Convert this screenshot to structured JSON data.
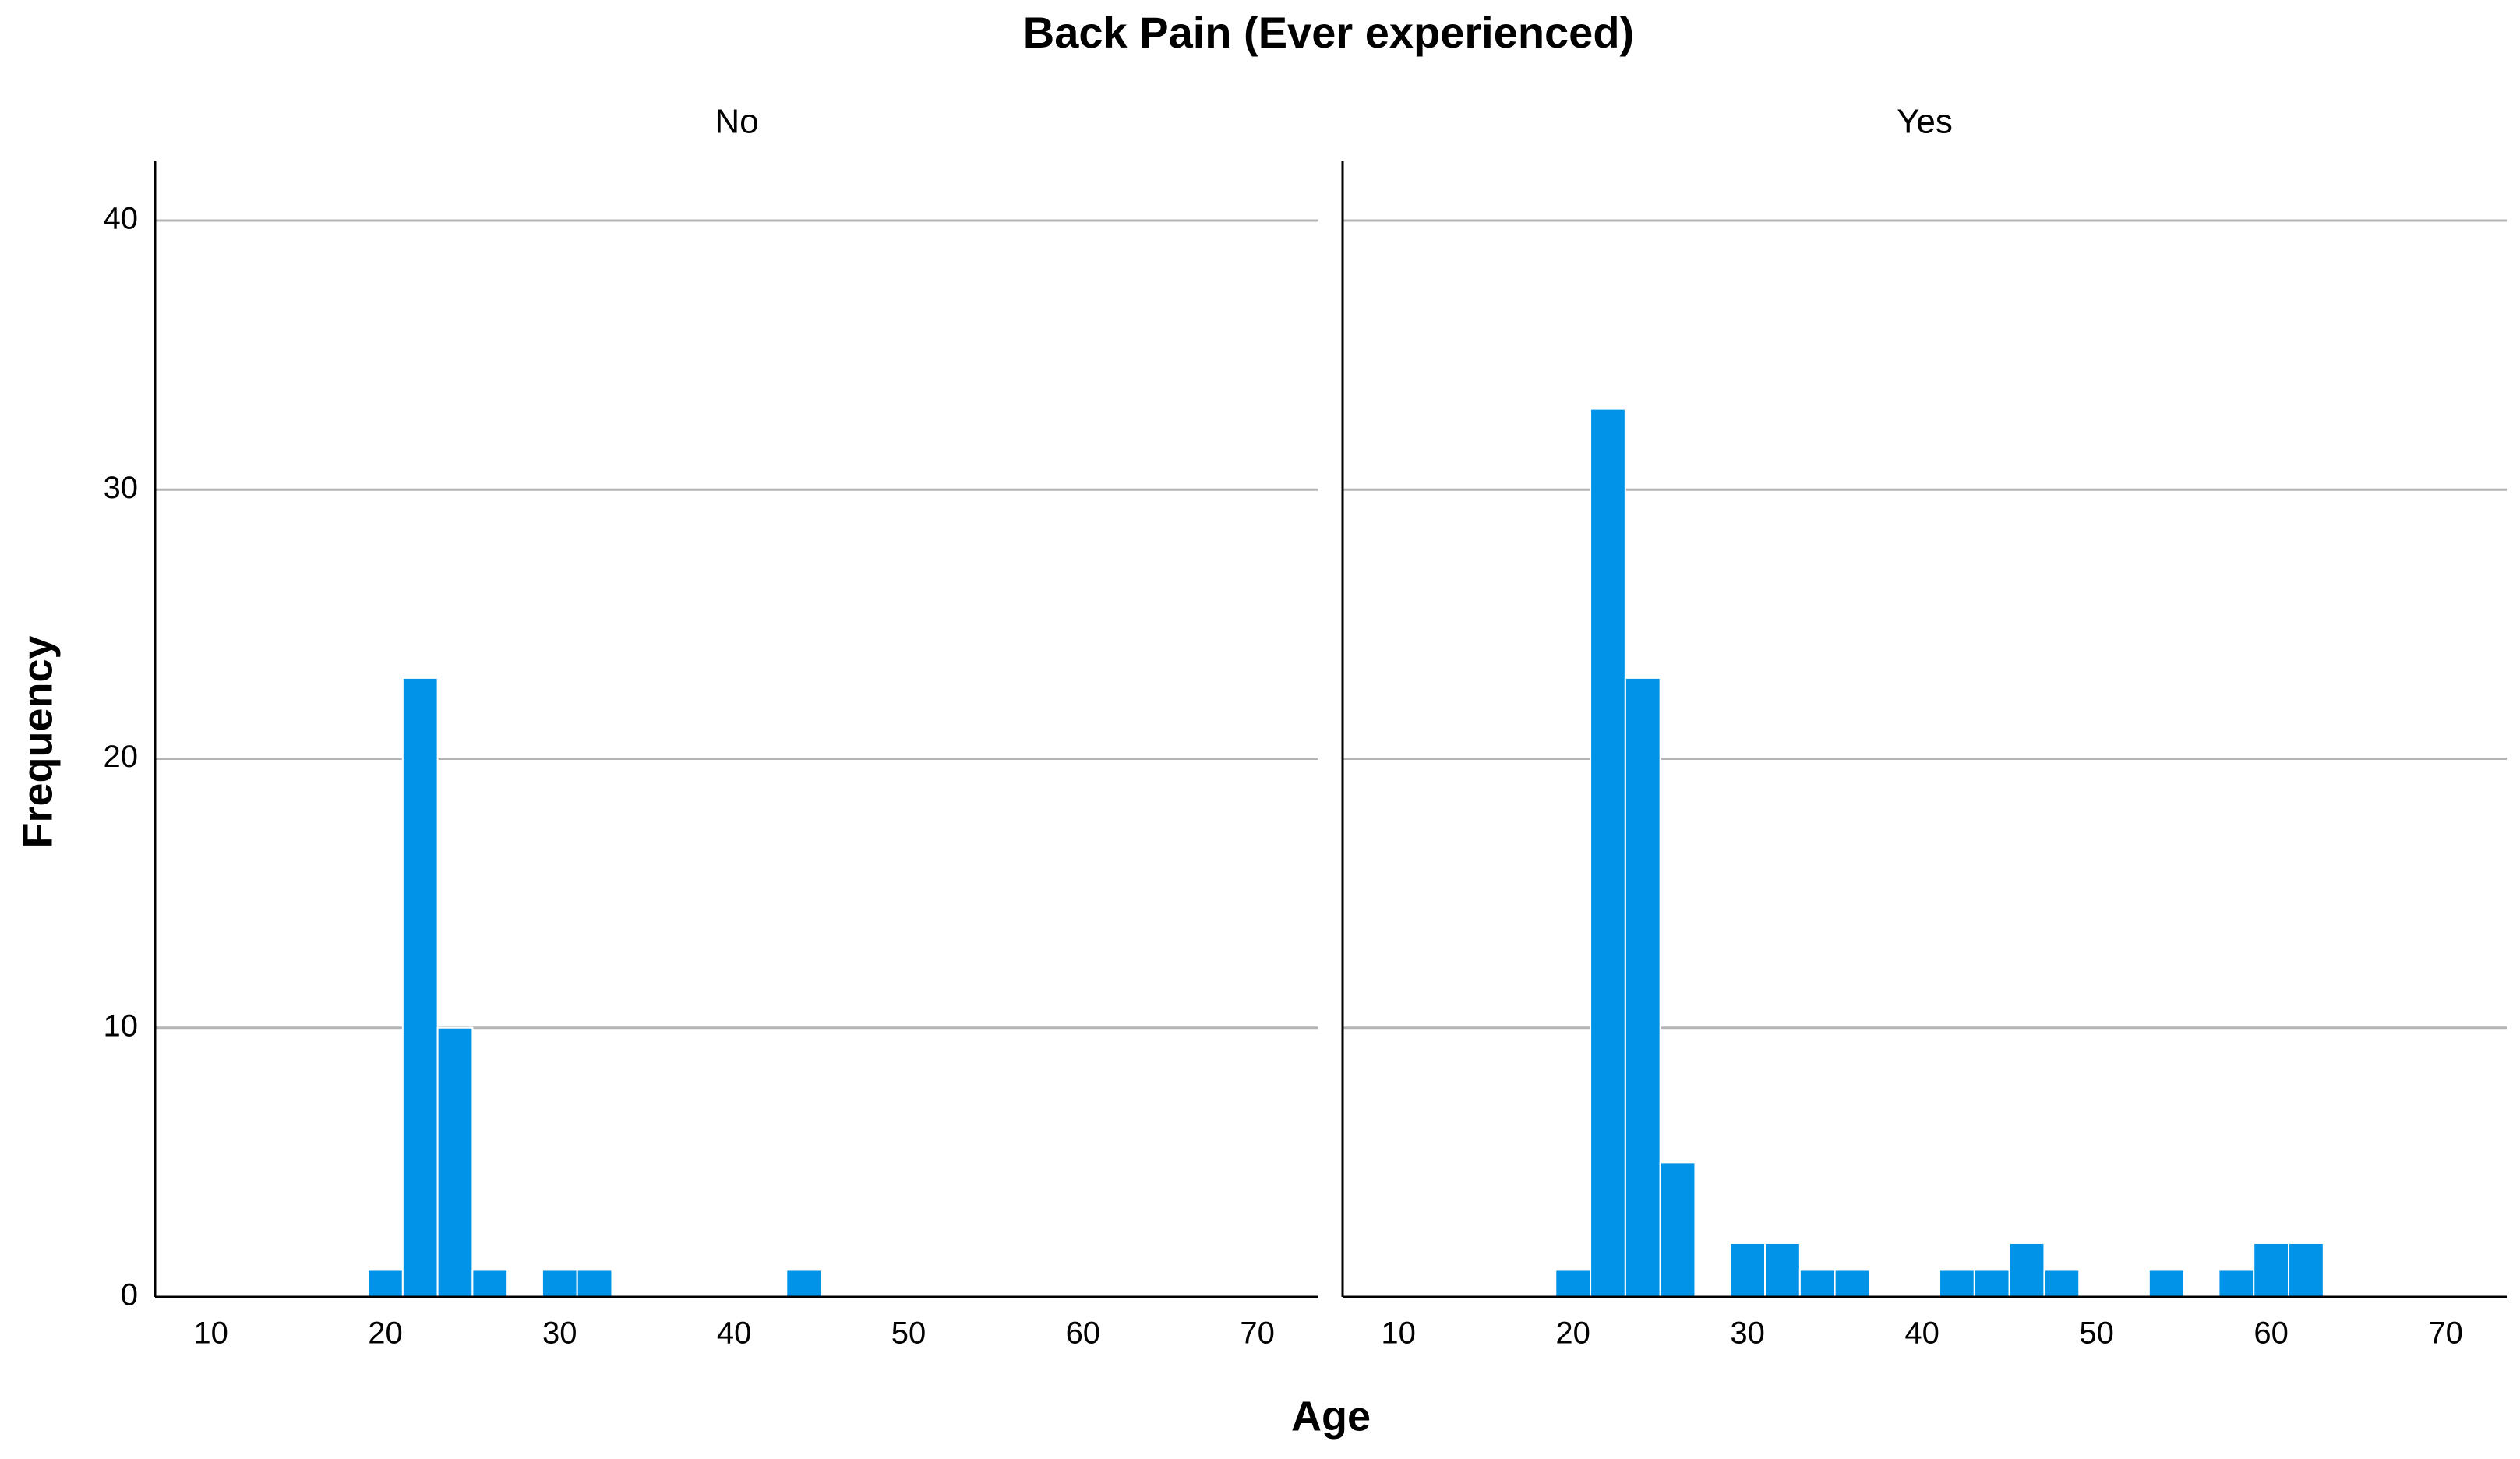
{
  "figure": {
    "title": "Back Pain (Ever experienced)",
    "x_label": "Age",
    "y_label": "Frequency"
  },
  "chart_data": [
    {
      "type": "histogram",
      "title": "No",
      "color": "#0093e8",
      "bins": [
        19,
        21,
        23,
        25,
        27,
        29,
        31,
        33,
        35,
        37,
        39,
        41,
        43,
        45,
        47,
        49,
        51,
        53,
        55,
        57,
        59,
        61,
        63
      ],
      "values": [
        1,
        23,
        10,
        1,
        0,
        1,
        1,
        0,
        0,
        0,
        0,
        0,
        1,
        0,
        0,
        0,
        0,
        0,
        0,
        0,
        0,
        0
      ],
      "xlim": [
        6.8,
        73.5
      ],
      "xticks": [
        10,
        20,
        30,
        40,
        50,
        60,
        70
      ],
      "ylim": [
        0,
        42.2
      ],
      "yticks": [
        0,
        10,
        20,
        30,
        40
      ],
      "grid": true
    },
    {
      "type": "histogram",
      "title": "Yes",
      "color": "#0093e8",
      "bins": [
        19,
        21,
        23,
        25,
        27,
        29,
        31,
        33,
        35,
        37,
        39,
        41,
        43,
        45,
        47,
        49,
        51,
        53,
        55,
        57,
        59,
        61,
        63
      ],
      "values": [
        1,
        33,
        23,
        5,
        0,
        2,
        2,
        1,
        1,
        0,
        0,
        1,
        1,
        2,
        1,
        0,
        0,
        1,
        0,
        1,
        2,
        2
      ],
      "xlim": [
        6.8,
        73.5
      ],
      "xticks": [
        10,
        20,
        30,
        40,
        50,
        60,
        70
      ],
      "ylim": [
        0,
        42.2
      ],
      "yticks": [
        0,
        10,
        20,
        30,
        40
      ],
      "grid": true
    }
  ]
}
